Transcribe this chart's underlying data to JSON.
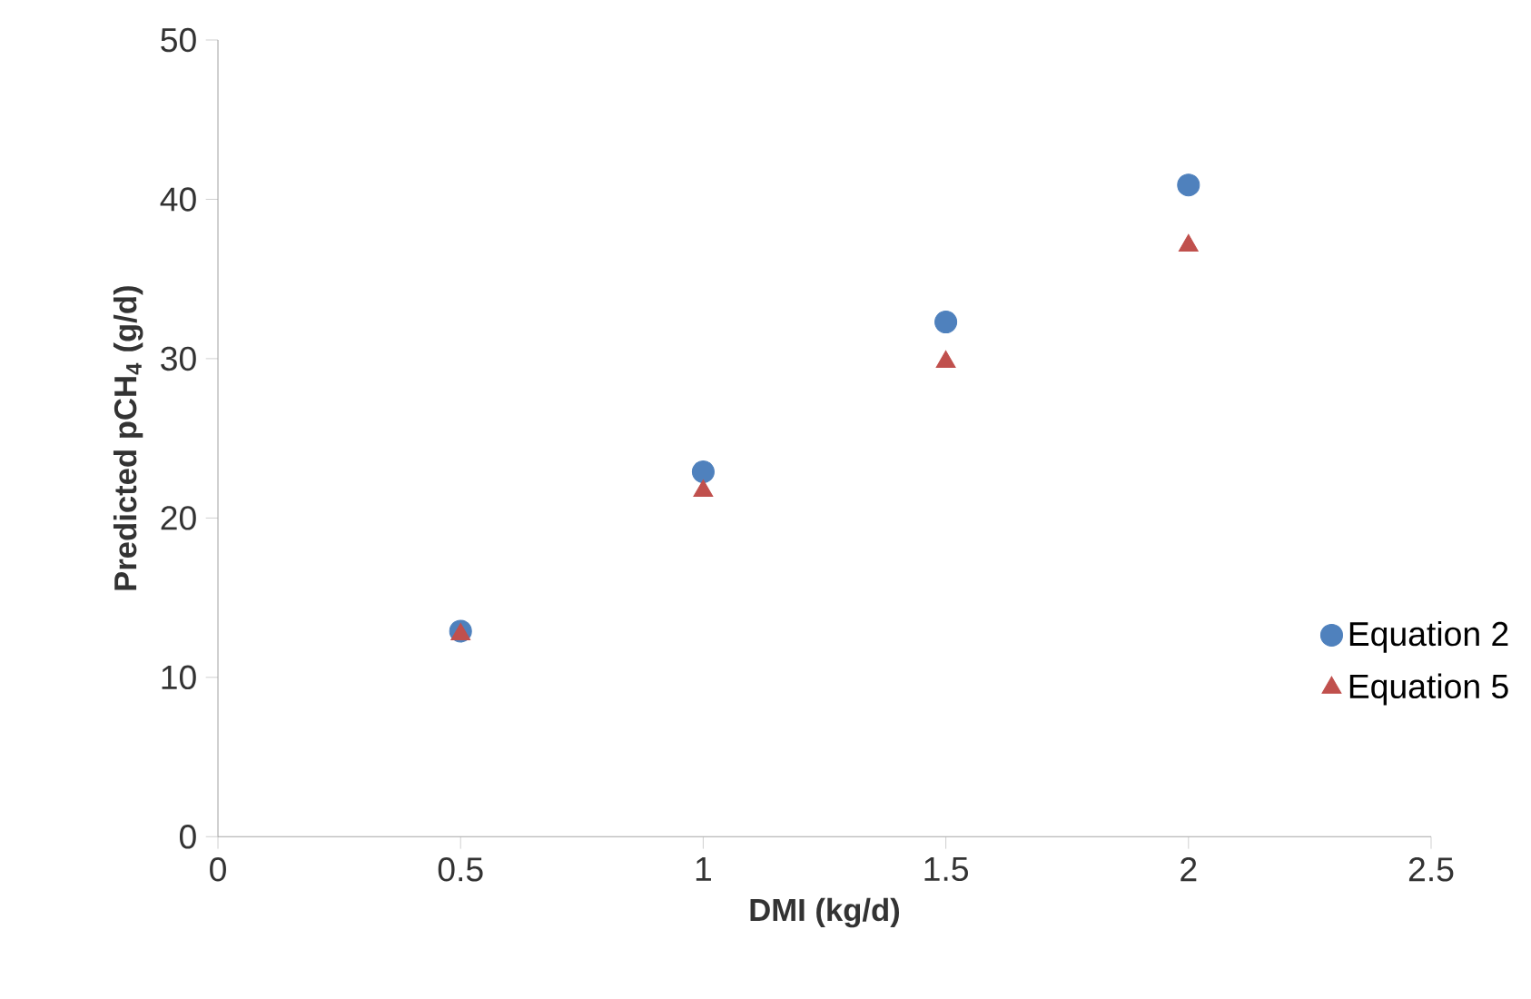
{
  "chart_data": {
    "type": "scatter",
    "xlabel": "DMI (kg/d)",
    "ylabel": "Predicted pCH$_{4}$ (g/d)",
    "x": [
      0.5,
      1,
      1.5,
      2
    ],
    "series": [
      {
        "name": "Equation 2",
        "color": "#4f81bd",
        "marker": "circle",
        "values": [
          12.9,
          22.9,
          32.3,
          40.9
        ]
      },
      {
        "name": "Equation 5",
        "color": "#c0504d",
        "marker": "triangle",
        "values": [
          12.7,
          21.7,
          29.8,
          37.1
        ]
      }
    ],
    "xlim": [
      0,
      2.5
    ],
    "xticks": [
      0,
      0.5,
      1,
      1.5,
      2,
      2.5
    ],
    "ylim": [
      0,
      50
    ],
    "yticks": [
      0,
      10,
      20,
      30,
      40,
      50
    ],
    "grid": false,
    "legend": "right"
  }
}
